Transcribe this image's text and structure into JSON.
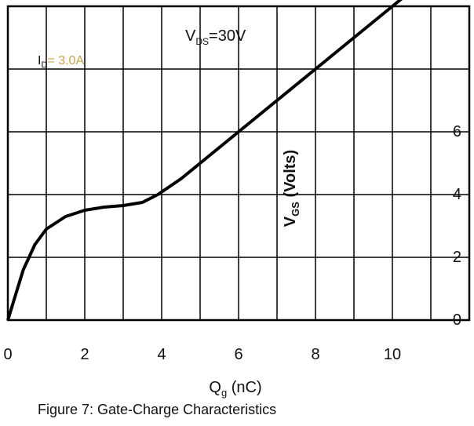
{
  "chart_data": {
    "type": "line",
    "title": "Figure 7: Gate-Charge Characteristics",
    "xlabel": "Q",
    "xlabel_sub": "g",
    "xlabel_unit": " (nC)",
    "ylabel": "V",
    "ylabel_sub": "GS",
    "ylabel_unit": " (Volts)",
    "xlim": [
      0,
      12
    ],
    "ylim": [
      0,
      10
    ],
    "x_ticks": [
      0,
      2,
      4,
      6,
      8,
      10
    ],
    "y_ticks": [
      0,
      2,
      4,
      6
    ],
    "annotations": [
      {
        "label": "V",
        "sub": "DS",
        "text": "=30V"
      },
      {
        "label": "I",
        "sub": "D",
        "text": "= 3.0A"
      }
    ],
    "series": [
      {
        "x": [
          0,
          0.4,
          0.55,
          0.7,
          1.0,
          1.5,
          2.0,
          2.5,
          3.0,
          3.5,
          3.9,
          4.5,
          5.0,
          6.0,
          7.0,
          8.0,
          9.0,
          10.0,
          10.5
        ],
        "y": [
          0,
          1.6,
          2.0,
          2.4,
          2.9,
          3.3,
          3.5,
          3.6,
          3.65,
          3.75,
          4.0,
          4.5,
          5.0,
          6.0,
          7.0,
          8.0,
          9.0,
          10.0,
          10.5
        ]
      }
    ]
  },
  "colors": {
    "line": "#000000",
    "axis": "#000000",
    "grid": "#000000",
    "annotation_text": "#c9a34a"
  }
}
